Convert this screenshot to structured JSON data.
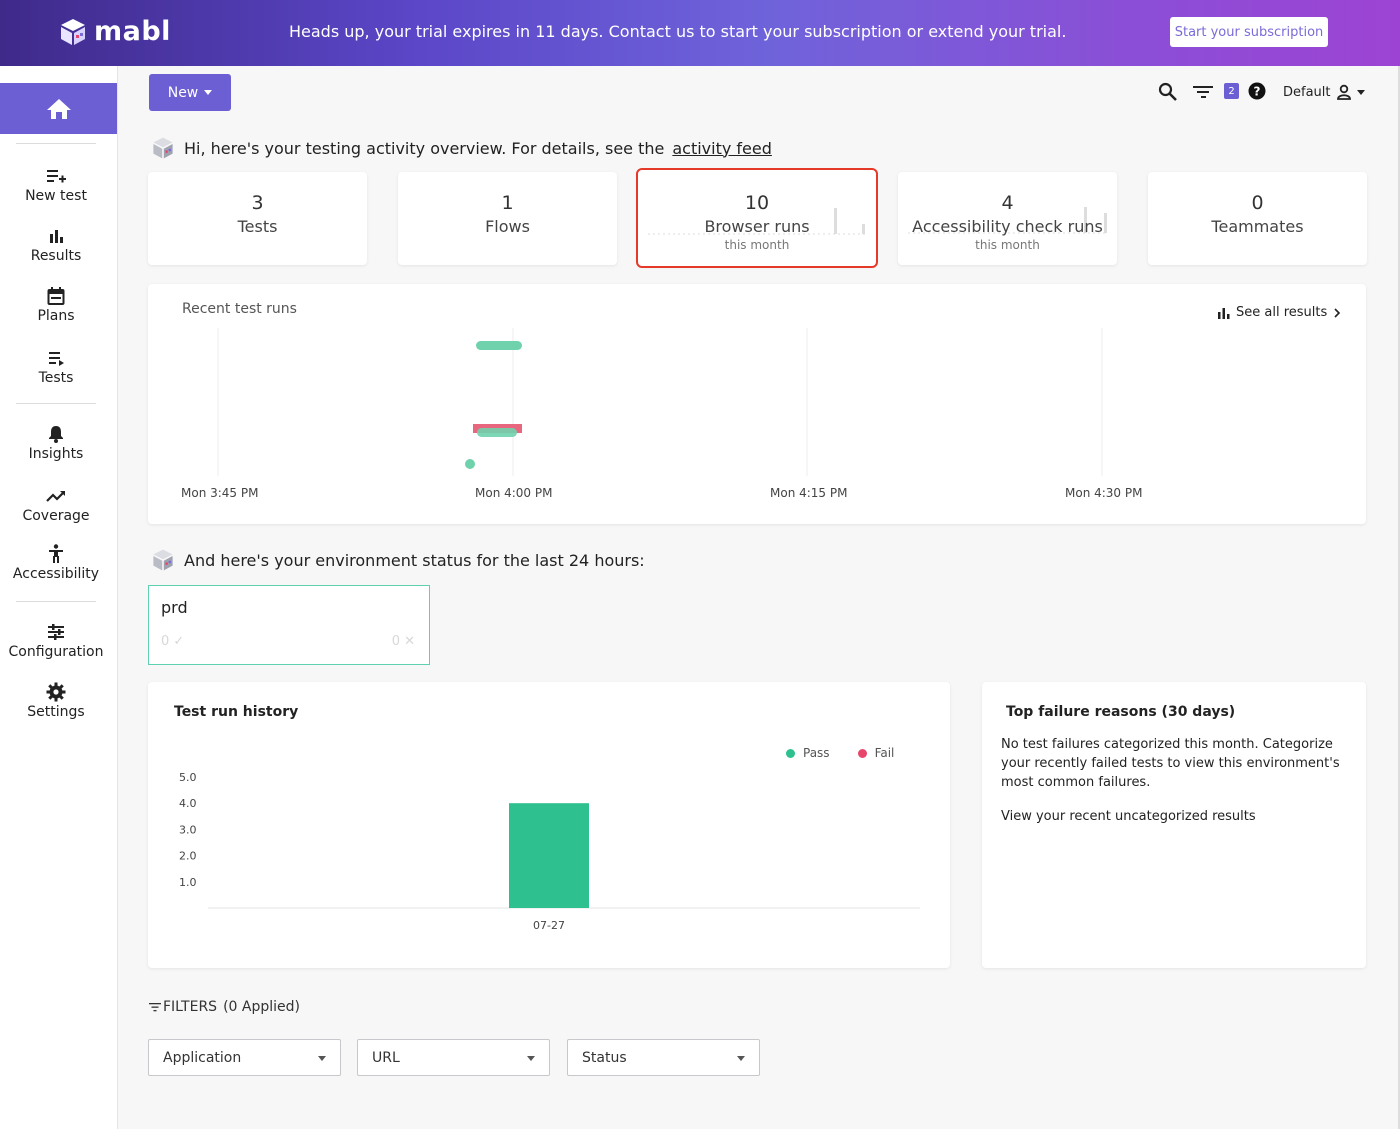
{
  "banner": {
    "brand": "mabl",
    "message": "Heads up, your trial expires in 11 days. Contact us to start your subscription or extend your trial.",
    "subscribe_label": "Start your subscription"
  },
  "sidebar": {
    "items": [
      {
        "label": "New test",
        "icon": "add-list-icon"
      },
      {
        "label": "Results",
        "icon": "bar-chart-icon"
      },
      {
        "label": "Plans",
        "icon": "calendar-icon"
      },
      {
        "label": "Tests",
        "icon": "list-icon"
      },
      {
        "label": "Insights",
        "icon": "bell-icon"
      },
      {
        "label": "Coverage",
        "icon": "trend-icon"
      },
      {
        "label": "Accessibility",
        "icon": "accessibility-icon"
      },
      {
        "label": "Configuration",
        "icon": "sliders-icon"
      },
      {
        "label": "Settings",
        "icon": "gear-icon"
      }
    ]
  },
  "toolbar": {
    "new_label": "New",
    "filter_badge": "2",
    "workspace": "Default"
  },
  "overview": {
    "greeting_prefix": "Hi, here's your testing activity overview. For details, see the",
    "greeting_link": "activity feed",
    "stats": [
      {
        "value": "3",
        "label": "Tests",
        "sub": ""
      },
      {
        "value": "1",
        "label": "Flows",
        "sub": ""
      },
      {
        "value": "10",
        "label": "Browser runs",
        "sub": "this month"
      },
      {
        "value": "4",
        "label": "Accessibility check runs",
        "sub": "this month"
      },
      {
        "value": "0",
        "label": "Teammates",
        "sub": ""
      }
    ]
  },
  "recent_runs": {
    "title": "Recent test runs",
    "see_all": "See all results",
    "time_labels": [
      "Mon 3:45 PM",
      "Mon 4:00 PM",
      "Mon 4:15 PM",
      "Mon 4:30 PM"
    ],
    "colors": {
      "pass": "#5fd0a8",
      "fail": "#e8677e"
    }
  },
  "environment": {
    "greeting": "And here's your environment status for the last 24 hours:",
    "name": "prd",
    "pass_count": "0 ✓",
    "fail_count": "0 ✕"
  },
  "history": {
    "title": "Test run history",
    "legend_pass": "Pass",
    "legend_fail": "Fail"
  },
  "chart_data": {
    "type": "bar",
    "title": "Test run history",
    "categories": [
      "07-27"
    ],
    "series": [
      {
        "name": "Pass",
        "values": [
          4.0
        ],
        "color": "#2ec08e"
      },
      {
        "name": "Fail",
        "values": [
          0
        ],
        "color": "#e8456b"
      }
    ],
    "y_ticks": [
      "1.0",
      "2.0",
      "3.0",
      "4.0",
      "5.0"
    ],
    "ylim": [
      0,
      5
    ],
    "legend": "top-right"
  },
  "failures": {
    "title": "Top failure reasons (30 days)",
    "body": "No test failures categorized this month. Categorize your recently failed tests to view this environment's most common failures.",
    "link": "View your recent uncategorized results"
  },
  "filters": {
    "label": "FILTERS",
    "applied": "(0 Applied)",
    "selects": [
      "Application",
      "URL",
      "Status"
    ]
  }
}
